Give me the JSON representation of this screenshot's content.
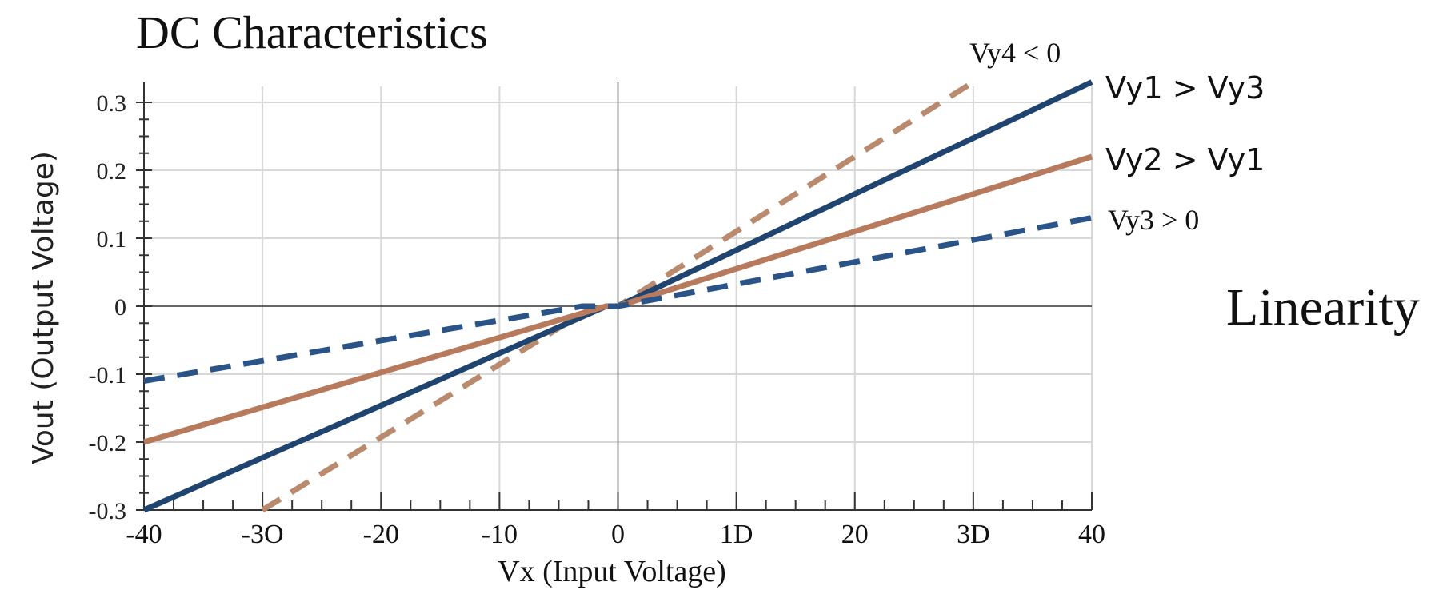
{
  "chart_data": {
    "type": "line",
    "title": "DC Characteristics",
    "side_label": "Linearity",
    "xlabel": "Vx (Input Voltage)",
    "ylabel": "Vout (Output Voltage)",
    "xlim": [
      -40,
      40
    ],
    "ylim": [
      -0.3,
      0.3
    ],
    "x_ticks": [
      {
        "value": -40,
        "label": "-40"
      },
      {
        "value": -30,
        "label": "-3O"
      },
      {
        "value": -20,
        "label": "-20"
      },
      {
        "value": -10,
        "label": "-10"
      },
      {
        "value": 0,
        "label": "0"
      },
      {
        "value": 10,
        "label": "1D"
      },
      {
        "value": 20,
        "label": "20"
      },
      {
        "value": 30,
        "label": "3D"
      },
      {
        "value": 40,
        "label": "40"
      }
    ],
    "y_ticks": [
      {
        "value": 0.3,
        "label": "0.3"
      },
      {
        "value": 0.2,
        "label": "0.2"
      },
      {
        "value": 0.1,
        "label": "0.1"
      },
      {
        "value": 0,
        "label": "0"
      },
      {
        "value": -0.1,
        "label": "-0.1"
      },
      {
        "value": -0.2,
        "label": "-0.2"
      },
      {
        "value": -0.3,
        "label": "-0.3"
      }
    ],
    "grid": true,
    "series": [
      {
        "name": "Vy4 < 0",
        "color": "#b98a6d",
        "dash": true,
        "x": [
          -30,
          -2,
          0,
          30
        ],
        "y": [
          -0.3,
          0,
          0,
          0.33
        ]
      },
      {
        "name": "Vy1 > Vy3",
        "color": "#1f4470",
        "dash": false,
        "x": [
          -40,
          -1,
          0,
          40
        ],
        "y": [
          -0.3,
          0,
          0,
          0.33
        ]
      },
      {
        "name": "Vy2 > Vy1",
        "color": "#b87a5c",
        "dash": false,
        "x": [
          -40,
          -1,
          0,
          40
        ],
        "y": [
          -0.2,
          0,
          0,
          0.22
        ]
      },
      {
        "name": "Vy3 > 0",
        "color": "#2a5488",
        "dash": true,
        "x": [
          -40,
          -3,
          0,
          40
        ],
        "y": [
          -0.11,
          0,
          0,
          0.13
        ]
      }
    ]
  }
}
